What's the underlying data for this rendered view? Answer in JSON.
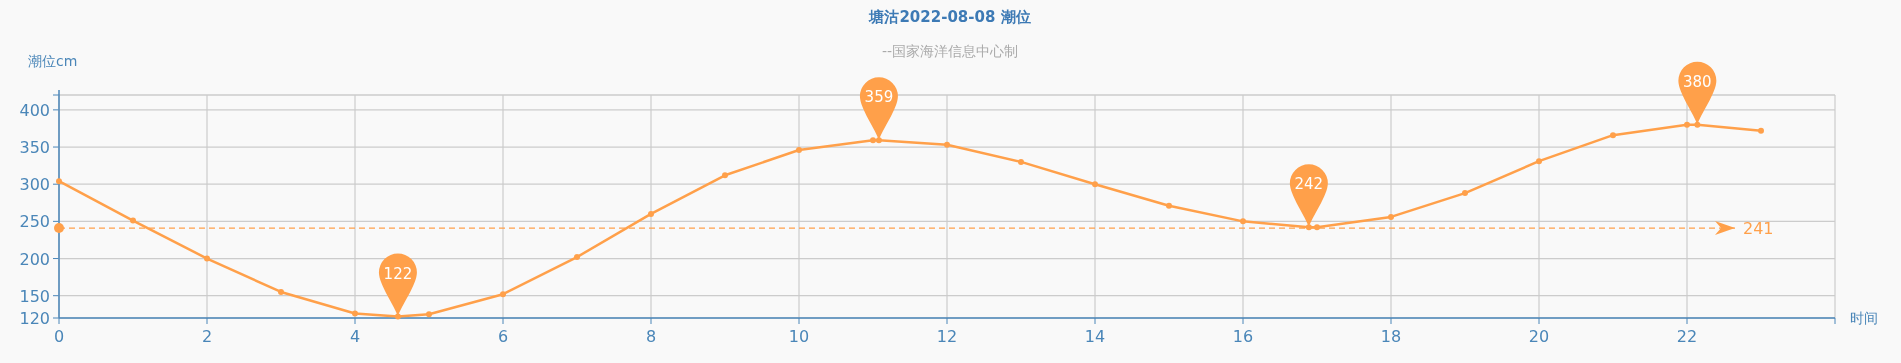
{
  "chart_data": {
    "type": "line",
    "title": "塘沽2022-08-08 潮位",
    "subtitle": "--国家海洋信息中心制",
    "xlabel": "时间",
    "ylabel": "潮位cm",
    "x": [
      0,
      1,
      2,
      3,
      4,
      4.58,
      5,
      6,
      7,
      8,
      9,
      10,
      11,
      11.08,
      12,
      13,
      14,
      15,
      16,
      16.89,
      17,
      18,
      19,
      20,
      21,
      22,
      22.14,
      23
    ],
    "series": [
      {
        "color": "#ffa04a",
        "values": [
          304,
          251,
          200,
          155,
          126,
          122,
          125,
          152,
          202,
          260,
          312,
          346,
          359,
          359,
          353,
          330,
          300,
          271,
          250,
          242,
          242,
          256,
          288,
          331,
          366,
          380,
          380,
          372
        ]
      }
    ],
    "xlim": [
      0,
      24
    ],
    "xticks": [
      0,
      2,
      4,
      6,
      8,
      10,
      12,
      14,
      16,
      18,
      20,
      22,
      {
        "value": 24,
        "label": null
      }
    ],
    "ylim": [
      120,
      420
    ],
    "yticks": [
      120,
      150,
      200,
      250,
      300,
      350,
      400,
      {
        "value": 420,
        "label": null
      }
    ],
    "grid": true,
    "marker": "circle",
    "line_style": "solid",
    "ref_lines": [
      {
        "axis": "y",
        "value": 241,
        "label": "241",
        "color": "#ffa04a",
        "line_style": "dashed"
      }
    ],
    "annotations": [
      {
        "text": "122",
        "x": 4.58,
        "y": 122
      },
      {
        "text": "359",
        "x": 11.08,
        "y": 359
      },
      {
        "text": "242",
        "x": 16.89,
        "y": 242
      },
      {
        "text": "380",
        "x": 22.14,
        "y": 380
      }
    ]
  }
}
